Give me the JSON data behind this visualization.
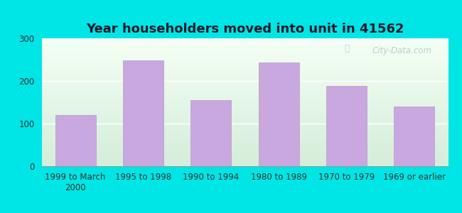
{
  "title": "Year householders moved into unit in 41562",
  "categories": [
    "1999 to March\n2000",
    "1995 to 1998",
    "1990 to 1994",
    "1980 to 1989",
    "1970 to 1979",
    "1969 or earlier"
  ],
  "values": [
    120,
    248,
    155,
    243,
    188,
    140
  ],
  "bar_color": "#c9a8e0",
  "bar_edgecolor": "#b898cc",
  "ylim": [
    0,
    300
  ],
  "yticks": [
    0,
    100,
    200,
    300
  ],
  "background_outer": "#00e5e5",
  "background_inner_top": "#f0f8f0",
  "background_inner_bottom": "#d4edda",
  "title_fontsize": 13,
  "tick_fontsize": 8.5,
  "watermark": "City-Data.com",
  "watermark_color": "#b0c8c8"
}
